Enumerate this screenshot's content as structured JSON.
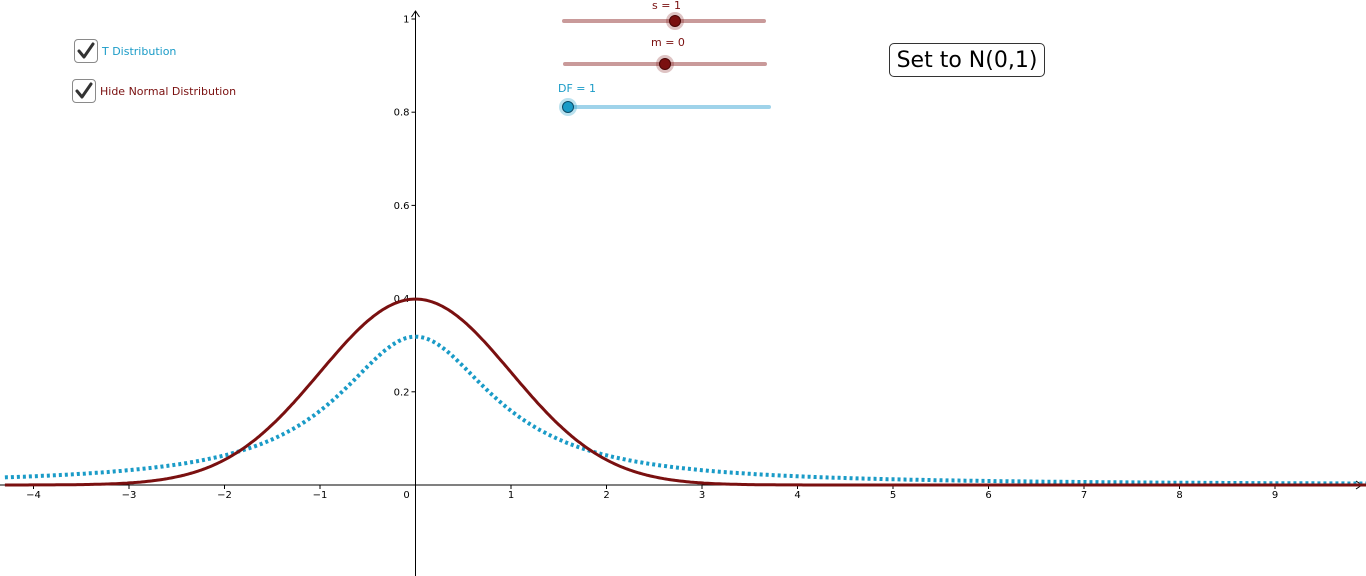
{
  "controls": {
    "t_distribution": {
      "label": "T Distribution",
      "checked": true,
      "color": "#1a9bc7"
    },
    "hide_normal": {
      "label": "Hide Normal Distribution",
      "checked": true,
      "color": "#7a1010"
    }
  },
  "sliders": {
    "s": {
      "caption": "s = 1",
      "value": 1,
      "color": "#7a1010"
    },
    "m": {
      "caption": "m = 0",
      "value": 0,
      "color": "#7a1010"
    },
    "df": {
      "caption": "DF = 1",
      "value": 1,
      "color": "#1a9bc7"
    }
  },
  "button": {
    "label": "Set to N(0,1)"
  },
  "icons": {
    "checkbox": "checkmark-icon"
  },
  "chart_data": {
    "type": "line",
    "xlim": [
      -4.3,
      10.0
    ],
    "ylim": [
      -0.19,
      1.02
    ],
    "x_ticks": [
      "−4",
      "−3",
      "−2",
      "−1",
      "0",
      "1",
      "2",
      "3",
      "4",
      "5",
      "6",
      "7",
      "8",
      "9"
    ],
    "x_tick_values": [
      -4,
      -3,
      -2,
      -1,
      0,
      1,
      2,
      3,
      4,
      5,
      6,
      7,
      8,
      9
    ],
    "y_ticks": [
      "0.2",
      "0.4",
      "0.6",
      "0.8",
      "1"
    ],
    "y_tick_values": [
      0.2,
      0.4,
      0.6,
      0.8,
      1.0
    ],
    "grid": false,
    "series": [
      {
        "distribution": "normal",
        "mean": 0,
        "sd": 1,
        "color": "#7a1010",
        "style": "solid"
      },
      {
        "distribution": "student-t",
        "df": 1,
        "color": "#1a9bc7",
        "style": "dotted"
      }
    ]
  }
}
